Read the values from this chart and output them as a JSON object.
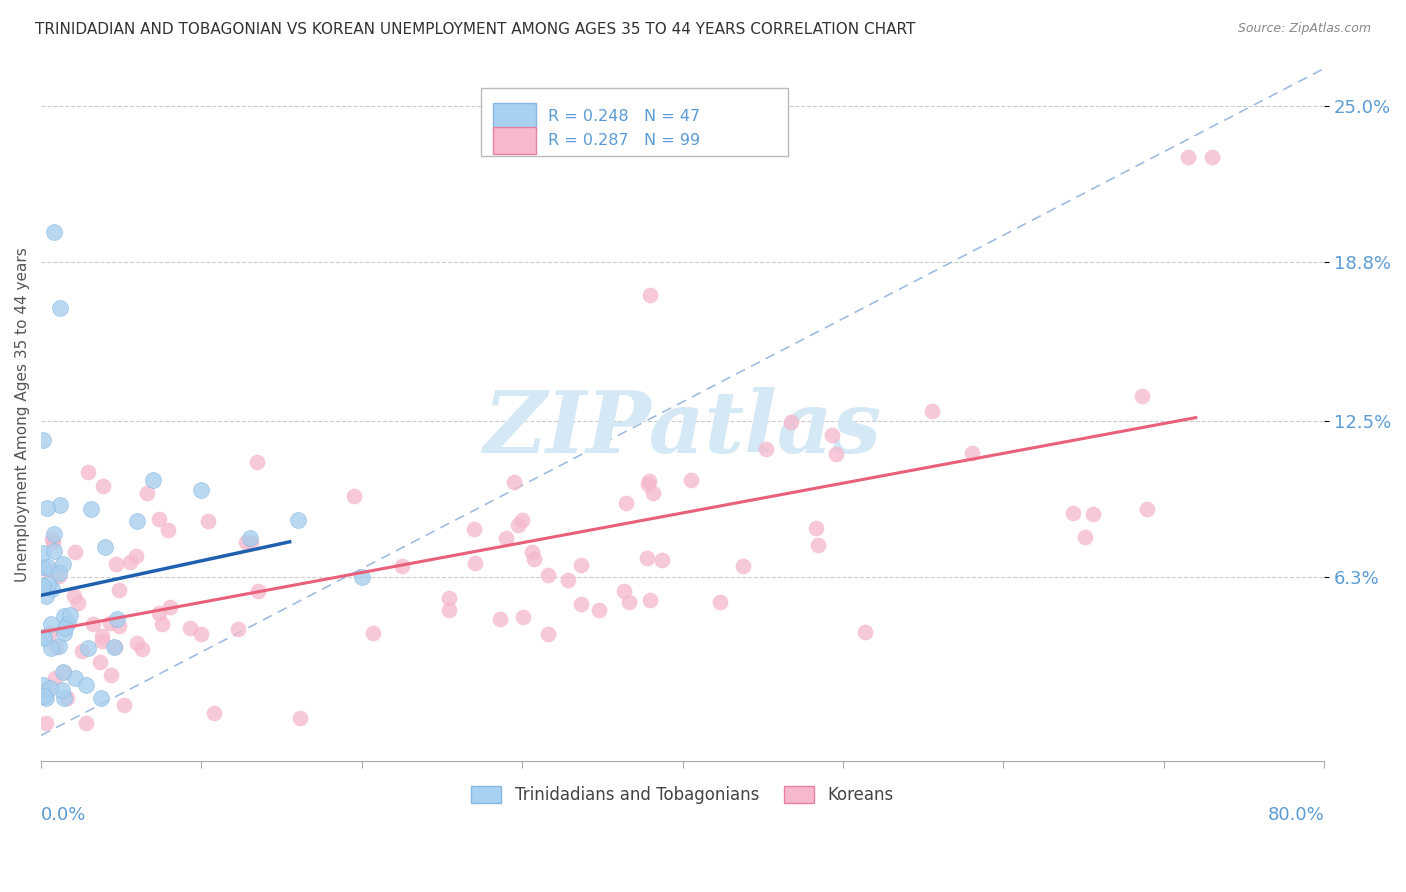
{
  "title": "TRINIDADIAN AND TOBAGONIAN VS KOREAN UNEMPLOYMENT AMONG AGES 35 TO 44 YEARS CORRELATION CHART",
  "source": "Source: ZipAtlas.com",
  "ylabel": "Unemployment Among Ages 35 to 44 years",
  "xlim": [
    0,
    0.8
  ],
  "ylim": [
    -0.01,
    0.265
  ],
  "yticks": [
    0.063,
    0.125,
    0.188,
    0.25
  ],
  "ytick_labels": [
    "6.3%",
    "12.5%",
    "18.8%",
    "25.0%"
  ],
  "blue_scatter_color": "#a8d0f0",
  "pink_scatter_color": "#f5b8cc",
  "blue_line_color": "#2060b0",
  "pink_line_color": "#e8607a",
  "ref_line_color": "#a0bce0",
  "axis_label_color": "#5b9bd5",
  "watermark_color": "#d5e8f5",
  "seed": 99
}
